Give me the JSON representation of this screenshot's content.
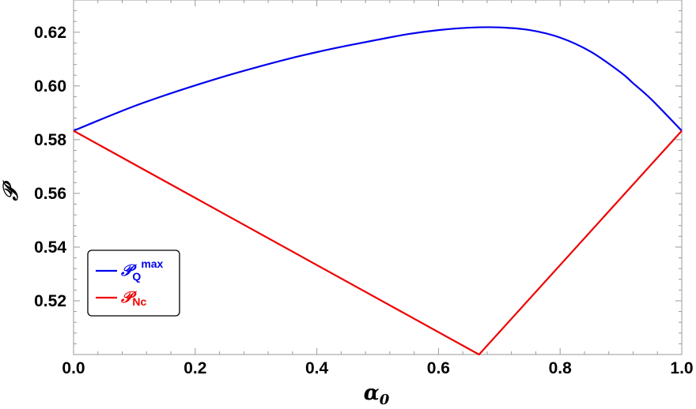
{
  "chart_data": {
    "type": "line",
    "xlabel": "α",
    "xlabel_sub": "0",
    "ylabel": "𝒫",
    "xlim": [
      0.0,
      1.0
    ],
    "ylim": [
      0.5,
      0.632
    ],
    "x_ticks": [
      0.0,
      0.2,
      0.4,
      0.6,
      0.8,
      1.0
    ],
    "x_tick_labels": [
      "0.0",
      "0.2",
      "0.4",
      "0.6",
      "0.8",
      "1.0"
    ],
    "y_ticks": [
      0.52,
      0.54,
      0.56,
      0.58,
      0.6,
      0.62
    ],
    "y_tick_labels": [
      "0.52",
      "0.54",
      "0.56",
      "0.58",
      "0.60",
      "0.62"
    ],
    "legend_position": "bottom-left",
    "series": [
      {
        "name": "𝒫",
        "name_sub": "Q",
        "name_sup": "max",
        "color": "#0000ee",
        "x": [
          0.0,
          0.05,
          0.1,
          0.15,
          0.2,
          0.25,
          0.3,
          0.35,
          0.4,
          0.45,
          0.5,
          0.55,
          0.6,
          0.65,
          0.7,
          0.75,
          0.8,
          0.85,
          0.9,
          0.92,
          0.95,
          1.0
        ],
        "y": [
          0.5833,
          0.588,
          0.5925,
          0.5965,
          0.6002,
          0.6037,
          0.6069,
          0.6099,
          0.6126,
          0.615,
          0.6172,
          0.6193,
          0.6208,
          0.6217,
          0.6218,
          0.6208,
          0.618,
          0.6128,
          0.605,
          0.601,
          0.595,
          0.5833
        ]
      },
      {
        "name": "𝒫",
        "name_sub": "Nc",
        "name_sup": "",
        "color": "#ee0000",
        "x": [
          0.0,
          0.6667,
          1.0
        ],
        "y": [
          0.5833,
          0.5,
          0.5833
        ]
      }
    ]
  }
}
